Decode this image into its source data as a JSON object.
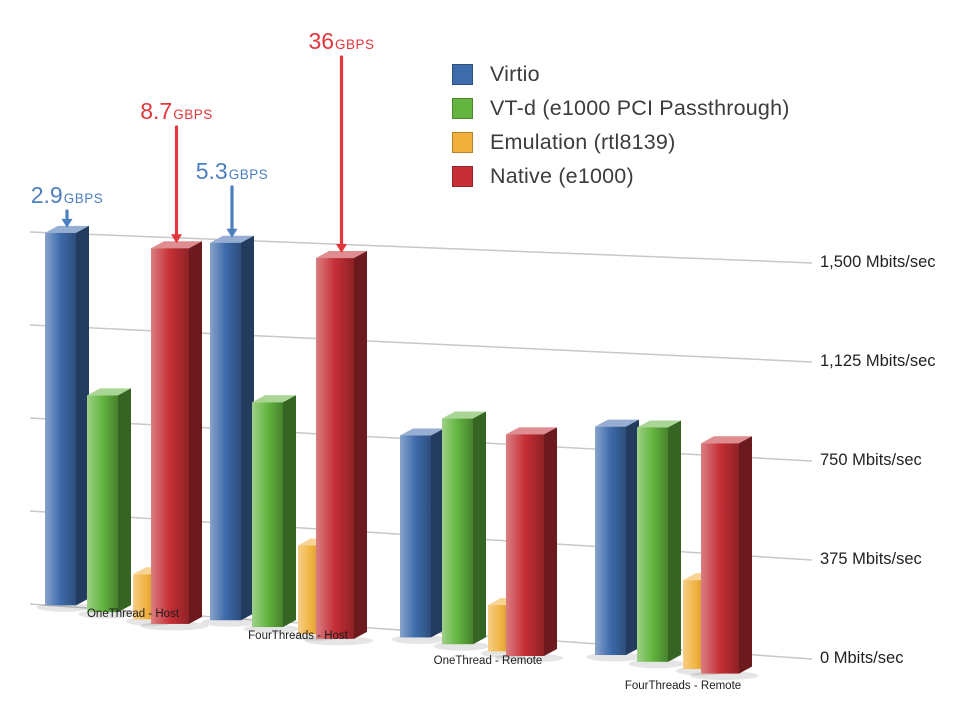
{
  "chart_data": {
    "type": "bar",
    "title": "",
    "style": "3d-perspective",
    "grid": true,
    "legend_position": "top-right",
    "y_axis": {
      "unit": "Mbits/sec",
      "max": 1500,
      "ticks": [
        {
          "value": 1500,
          "label": "1,500 Mbits/sec"
        },
        {
          "value": 1125,
          "label": "1,125 Mbits/sec"
        },
        {
          "value": 750,
          "label": "750 Mbits/sec"
        },
        {
          "value": 375,
          "label": "375 Mbits/sec"
        },
        {
          "value": 0,
          "label": "0 Mbits/sec"
        }
      ]
    },
    "categories": [
      "OneThread - Host",
      "FourThreads - Host",
      "OneThread - Remote",
      "FourThreads - Remote"
    ],
    "series": [
      {
        "name": "Virtio",
        "color": "#3E6BAB",
        "values_mbps": [
          2900,
          5300,
          790,
          880
        ]
      },
      {
        "name": "VT-d (e1000 PCI Passthrough)",
        "color": "#63B53F",
        "values_mbps": [
          870,
          890,
          880,
          900
        ]
      },
      {
        "name": "Emulation (rtl8139)",
        "color": "#F0B03C",
        "values_mbps": [
          180,
          350,
          180,
          340
        ]
      },
      {
        "name": "Native (e1000)",
        "color": "#C52F35",
        "values_mbps": [
          8700,
          36000,
          860,
          880
        ]
      }
    ],
    "annotations": [
      {
        "text": "2.9",
        "unit": "GBPS",
        "color": "#4C7FC0",
        "category_index": 0,
        "series_index": 0
      },
      {
        "text": "8.7",
        "unit": "GBPS",
        "color": "#E2373C",
        "category_index": 0,
        "series_index": 3
      },
      {
        "text": "5.3",
        "unit": "GBPS",
        "color": "#4C7FC0",
        "category_index": 1,
        "series_index": 0
      },
      {
        "text": "36",
        "unit": "GBPS",
        "color": "#E2373C",
        "category_index": 1,
        "series_index": 3
      }
    ]
  }
}
